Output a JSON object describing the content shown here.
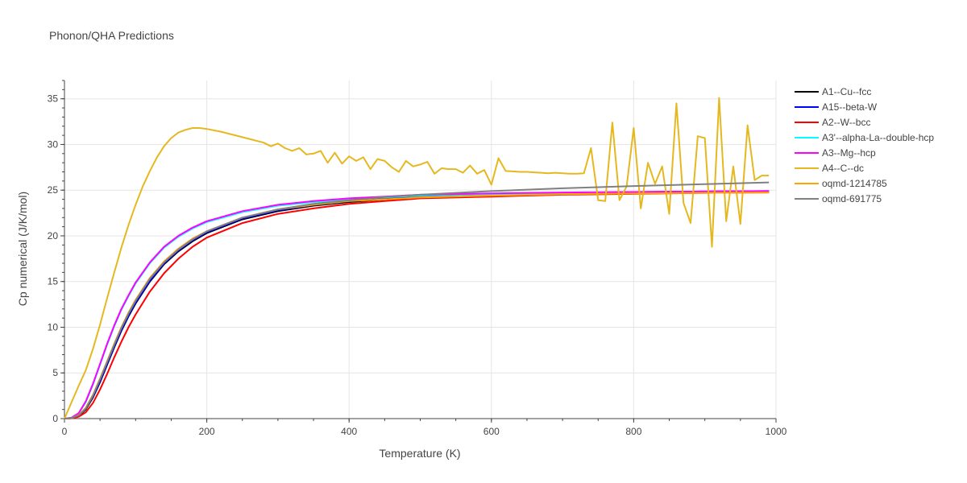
{
  "chart_data": {
    "type": "line",
    "title": "Phonon/QHA Predictions",
    "xlabel": "Temperature (K)",
    "ylabel": "Cp numerical (J/K/mol)",
    "xlim": [
      0,
      1000
    ],
    "ylim": [
      0,
      37
    ],
    "xticks": [
      0,
      200,
      400,
      600,
      800,
      1000
    ],
    "yticks": [
      0,
      5,
      10,
      15,
      20,
      25,
      30,
      35
    ],
    "grid": true,
    "legend_position": "right",
    "series": [
      {
        "name": "A1--Cu--fcc",
        "color": "#000000",
        "x": [
          0,
          10,
          20,
          30,
          40,
          50,
          60,
          70,
          80,
          90,
          100,
          120,
          140,
          160,
          180,
          200,
          250,
          300,
          350,
          400,
          450,
          500,
          600,
          700,
          800,
          900,
          990
        ],
        "y": [
          0,
          0.05,
          0.3,
          1.0,
          2.3,
          4.0,
          5.9,
          7.8,
          9.6,
          11.2,
          12.6,
          15.0,
          16.9,
          18.3,
          19.4,
          20.3,
          21.8,
          22.7,
          23.3,
          23.7,
          24.0,
          24.2,
          24.4,
          24.6,
          24.7,
          24.8,
          24.85
        ]
      },
      {
        "name": "A15--beta-W",
        "color": "#0000ff",
        "x": [
          0,
          10,
          20,
          30,
          40,
          50,
          60,
          70,
          80,
          90,
          100,
          120,
          140,
          160,
          180,
          200,
          250,
          300,
          350,
          400,
          450,
          500,
          600,
          700,
          800,
          900,
          990
        ],
        "y": [
          0,
          0.05,
          0.3,
          1.1,
          2.4,
          4.1,
          6.0,
          7.9,
          9.7,
          11.3,
          12.7,
          15.1,
          17.0,
          18.4,
          19.5,
          20.4,
          21.9,
          22.8,
          23.4,
          23.8,
          24.1,
          24.3,
          24.5,
          24.7,
          24.8,
          24.85,
          24.9
        ]
      },
      {
        "name": "A2--W--bcc",
        "color": "#ff0000",
        "x": [
          0,
          10,
          20,
          30,
          40,
          50,
          60,
          70,
          80,
          90,
          100,
          120,
          140,
          160,
          180,
          200,
          250,
          300,
          350,
          400,
          450,
          500,
          600,
          700,
          800,
          900,
          990
        ],
        "y": [
          0,
          0.03,
          0.2,
          0.7,
          1.7,
          3.2,
          4.9,
          6.7,
          8.4,
          10.0,
          11.4,
          13.9,
          15.9,
          17.5,
          18.8,
          19.8,
          21.4,
          22.4,
          23.0,
          23.5,
          23.8,
          24.1,
          24.3,
          24.5,
          24.6,
          24.7,
          24.75
        ]
      },
      {
        "name": "A3'--alpha-La--double-hcp",
        "color": "#00ffff",
        "x": [
          0,
          10,
          20,
          30,
          40,
          50,
          60,
          70,
          80,
          90,
          100,
          120,
          140,
          160,
          180,
          200,
          250,
          300,
          350,
          400,
          450,
          500,
          600,
          700,
          800,
          900,
          990
        ],
        "y": [
          0,
          0.1,
          0.6,
          1.8,
          3.7,
          5.9,
          8.1,
          10.1,
          11.9,
          13.4,
          14.8,
          17.0,
          18.7,
          19.9,
          20.8,
          21.5,
          22.6,
          23.3,
          23.7,
          24.0,
          24.2,
          24.4,
          24.55,
          24.65,
          24.75,
          24.8,
          24.85
        ]
      },
      {
        "name": "A3--Mg--hcp",
        "color": "#ff00ff",
        "x": [
          0,
          10,
          20,
          30,
          40,
          50,
          60,
          70,
          80,
          90,
          100,
          120,
          140,
          160,
          180,
          200,
          250,
          300,
          350,
          400,
          450,
          500,
          600,
          700,
          800,
          900,
          990
        ],
        "y": [
          0,
          0.1,
          0.6,
          1.9,
          3.8,
          6.0,
          8.2,
          10.2,
          12.0,
          13.5,
          14.9,
          17.1,
          18.8,
          20.0,
          20.9,
          21.6,
          22.7,
          23.4,
          23.8,
          24.1,
          24.3,
          24.5,
          24.65,
          24.75,
          24.8,
          24.85,
          24.9
        ]
      },
      {
        "name": "A4--C--dc",
        "color": "#e6b820",
        "x": [
          0,
          10,
          20,
          30,
          40,
          50,
          60,
          70,
          80,
          90,
          100,
          110,
          120,
          130,
          140,
          150,
          160,
          170,
          180,
          190,
          200,
          220,
          240,
          260,
          280,
          290,
          300,
          310,
          320,
          330,
          340,
          350,
          360,
          370,
          380,
          390,
          400,
          410,
          420,
          430,
          440,
          450,
          460,
          470,
          480,
          490,
          500,
          510,
          520,
          530,
          540,
          550,
          560,
          570,
          580,
          590,
          600,
          610,
          620,
          630,
          640,
          650,
          660,
          670,
          680,
          690,
          700,
          710,
          720,
          730,
          740,
          750,
          760,
          770,
          780,
          790,
          800,
          810,
          820,
          830,
          840,
          850,
          860,
          870,
          880,
          890,
          900,
          910,
          920,
          930,
          940,
          950,
          960,
          970,
          980,
          990
        ],
        "y": [
          0,
          1.8,
          3.6,
          5.3,
          7.6,
          10.3,
          13.2,
          16.0,
          18.7,
          21.2,
          23.4,
          25.4,
          27.1,
          28.6,
          29.8,
          30.7,
          31.3,
          31.6,
          31.8,
          31.8,
          31.7,
          31.4,
          31.0,
          30.6,
          30.2,
          29.8,
          30.1,
          29.6,
          29.3,
          29.6,
          28.9,
          29.0,
          29.3,
          28.0,
          29.1,
          27.9,
          28.7,
          28.2,
          28.6,
          27.3,
          28.4,
          28.2,
          27.5,
          27.0,
          28.2,
          27.6,
          27.8,
          28.1,
          26.8,
          27.4,
          27.3,
          27.3,
          26.9,
          27.7,
          26.8,
          27.2,
          25.6,
          28.5,
          27.1,
          27.05,
          27.0,
          27.0,
          26.95,
          26.9,
          26.85,
          26.9,
          26.85,
          26.8,
          26.8,
          26.85,
          29.6,
          23.9,
          23.8,
          32.4,
          23.9,
          25.4,
          31.8,
          23.0,
          28.0,
          25.7,
          27.6,
          22.4,
          34.5,
          23.6,
          21.4,
          30.9,
          30.7,
          18.8,
          35.1,
          21.6,
          27.6,
          21.3,
          32.1,
          26.1,
          26.6,
          26.6
        ]
      },
      {
        "name": "oqmd-1214785",
        "color": "#ffa500",
        "x": [
          0,
          10,
          20,
          30,
          40,
          50,
          60,
          70,
          80,
          90,
          100,
          120,
          140,
          160,
          180,
          200,
          250,
          300,
          350,
          400,
          450,
          500,
          600,
          700,
          800,
          900,
          990
        ],
        "y": [
          0,
          0.05,
          0.4,
          1.2,
          2.6,
          4.4,
          6.3,
          8.2,
          10.0,
          11.6,
          13.0,
          15.4,
          17.2,
          18.6,
          19.7,
          20.5,
          22.0,
          22.9,
          23.4,
          23.8,
          24.0,
          24.2,
          24.4,
          24.55,
          24.65,
          24.7,
          24.75
        ]
      },
      {
        "name": "oqmd-691775",
        "color": "#808080",
        "x": [
          0,
          10,
          20,
          30,
          40,
          50,
          60,
          70,
          80,
          90,
          100,
          120,
          140,
          160,
          180,
          200,
          250,
          300,
          350,
          400,
          450,
          500,
          600,
          700,
          800,
          900,
          990
        ],
        "y": [
          0,
          0.05,
          0.35,
          1.1,
          2.5,
          4.3,
          6.2,
          8.1,
          9.9,
          11.5,
          12.9,
          15.3,
          17.1,
          18.5,
          19.6,
          20.5,
          22.0,
          22.9,
          23.5,
          23.9,
          24.25,
          24.5,
          24.9,
          25.2,
          25.45,
          25.65,
          25.85
        ]
      }
    ]
  }
}
